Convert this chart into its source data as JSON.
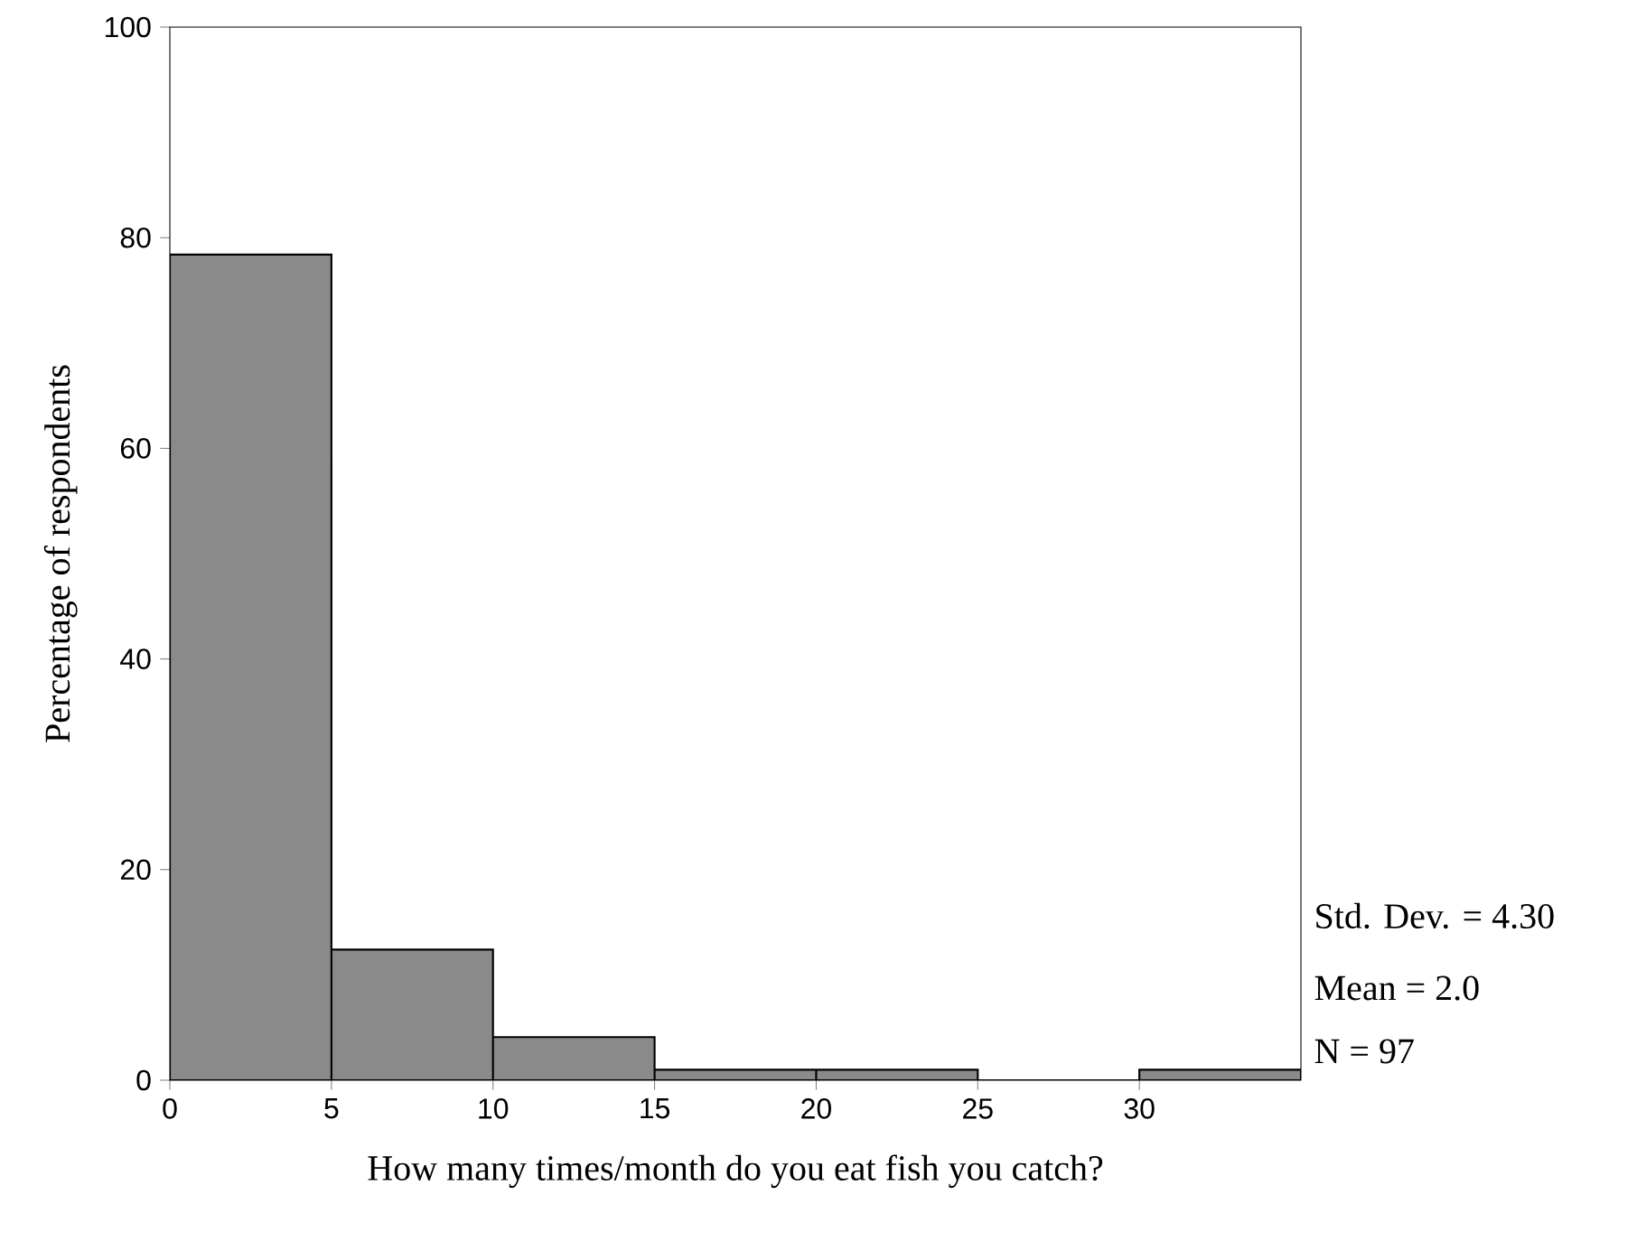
{
  "chart_data": {
    "type": "histogram",
    "xlabel": "How many times/month do you eat fish you catch?",
    "ylabel": "Percentage of respondents",
    "bins": [
      0,
      5,
      10,
      15,
      20,
      25,
      30,
      35
    ],
    "values": [
      78.4,
      12.4,
      4.1,
      1.0,
      1.0,
      0,
      1.0
    ],
    "color": "#8a8a8a",
    "xlim": [
      0,
      35
    ],
    "ylim": [
      0,
      100
    ],
    "xticks": [
      0,
      5,
      10,
      15,
      20,
      25,
      30
    ],
    "yticks": [
      0,
      20,
      40,
      60,
      80,
      100
    ],
    "grid": false,
    "annotations": [
      "Std. Dev. = 4.30",
      "Mean = 2.0",
      "N = 97"
    ]
  }
}
